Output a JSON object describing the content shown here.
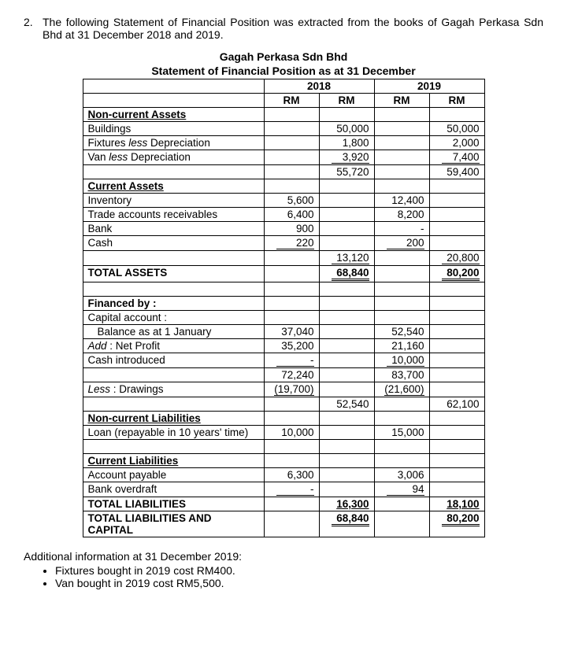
{
  "question": {
    "number": "2.",
    "text": "The following Statement of Financial Position was extracted from the books of Gagah Perkasa Sdn Bhd at 31 December 2018 and 2019."
  },
  "header": {
    "company": "Gagah Perkasa Sdn Bhd",
    "statement": "Statement of Financial Position as at 31 December",
    "year1": "2018",
    "year2": "2019",
    "rm": "RM"
  },
  "rows": {
    "nca": "Non-current Assets",
    "buildings": "Buildings",
    "buildings_18b": "50,000",
    "buildings_19b": "50,000",
    "fixtures": "Fixtures less Depreciation",
    "fixtures_18b": "1,800",
    "fixtures_19b": "2,000",
    "van": "Van less Depreciation",
    "van_18b": "3,920",
    "van_19b": "7,400",
    "nca_tot_18b": "55,720",
    "nca_tot_19b": "59,400",
    "ca": "Current Assets",
    "inv": "Inventory",
    "inv_18a": "5,600",
    "inv_19a": "12,400",
    "tar": "Trade accounts receivables",
    "tar_18a": "6,400",
    "tar_19a": "8,200",
    "bank": "Bank",
    "bank_18a": "900",
    "bank_19a": "-",
    "cash": "Cash",
    "cash_18a": "220",
    "cash_19a": "200",
    "ca_tot_18b": "13,120",
    "ca_tot_19b": "20,800",
    "ta": "TOTAL ASSETS",
    "ta_18b": "68,840",
    "ta_19b": "80,200",
    "fin": "Financed by :",
    "cap": "Capital account :",
    "bal": "Balance as at 1 January",
    "bal_18a": "37,040",
    "bal_19a": "52,540",
    "np": "Add : Net Profit",
    "np_18a": "35,200",
    "np_19a": "21,160",
    "ci": "Cash introduced",
    "ci_18a": "-",
    "ci_19a": "10,000",
    "sub_18a": "72,240",
    "sub_19a": "83,700",
    "draw": "Less : Drawings",
    "draw_18a": "(19,700)",
    "draw_19a": "(21,600)",
    "cap_tot_18b": "52,540",
    "cap_tot_19b": "62,100",
    "ncl": "Non-current Liabilities",
    "loan": "Loan (repayable in 10 years' time)",
    "loan_18a": "10,000",
    "loan_19a": "15,000",
    "cl": "Current Liabilities",
    "ap": "Account payable",
    "ap_18a": "6,300",
    "ap_19a": "3,006",
    "bo": "Bank overdraft",
    "bo_18a": "-",
    "bo_19a": "94",
    "tl": "TOTAL LIABILITIES",
    "tl_18b": "16,300",
    "tl_19b": "18,100",
    "tlc": "TOTAL LIABILITIES AND CAPITAL",
    "tlc_18b": "68,840",
    "tlc_19b": "80,200"
  },
  "additional": {
    "heading": "Additional information at 31 December 2019:",
    "b1": "Fixtures bought in 2019 cost RM400.",
    "b2": "Van bought in 2019 cost RM5,500."
  }
}
